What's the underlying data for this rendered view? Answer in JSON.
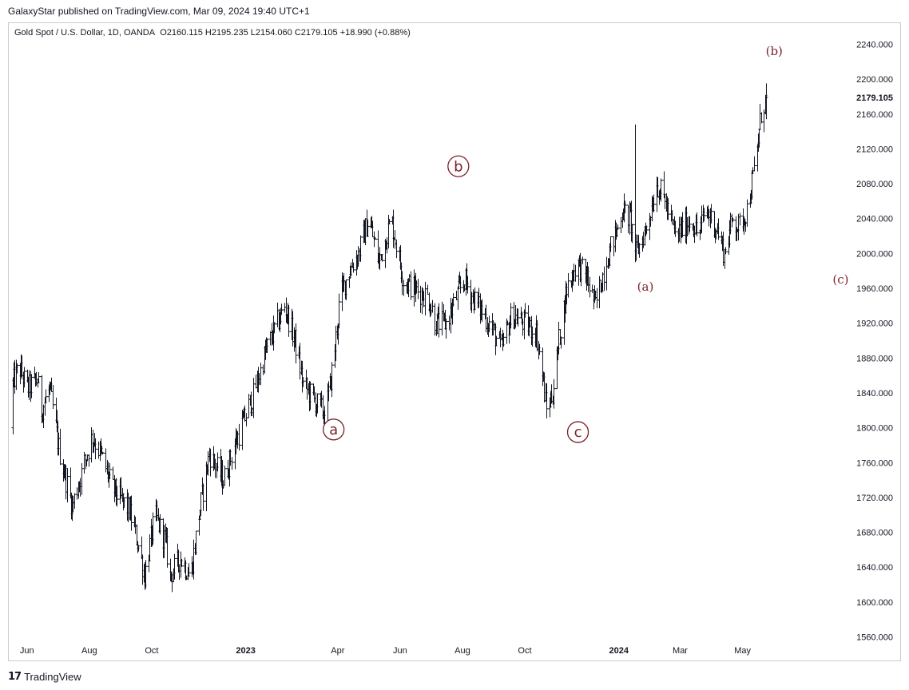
{
  "header": {
    "published": "GalaxyStar published on TradingView.com, Mar 09, 2024 19:40 UTC+1"
  },
  "symbol": {
    "title": "Gold Spot / U.S. Dollar, 1D, OANDA",
    "ohlc": "O2160.115  H2195.235  L2154.060  C2179.105  +18.990 (+0.88%)"
  },
  "footer": {
    "logo_icon": "tradingview-logo-icon",
    "brand": "TradingView"
  },
  "colors": {
    "bars": "#131722",
    "wave_labels": "#7b1e27",
    "axis_text": "#131722",
    "frame": "#c9ccd1"
  },
  "chart_data": {
    "type": "ohlc-bar",
    "y_tick_labels": [
      "2240.000",
      "2200.000",
      "2160.000",
      "2120.000",
      "2080.000",
      "2040.000",
      "2000.000",
      "1960.000",
      "1920.000",
      "1880.000",
      "1840.000",
      "1800.000",
      "1760.000",
      "1720.000",
      "1680.000",
      "1640.000",
      "1600.000",
      "1560.000"
    ],
    "ylim": [
      1560,
      2240
    ],
    "last_price_label": "2179.105",
    "last_price": 2179.105,
    "x_tick_labels": [
      {
        "label": "Jun",
        "bold": false,
        "day": 0
      },
      {
        "label": "Aug",
        "bold": false,
        "day": 61
      },
      {
        "label": "Oct",
        "bold": false,
        "day": 122
      },
      {
        "label": "2023",
        "bold": true,
        "day": 214
      },
      {
        "label": "Apr",
        "bold": false,
        "day": 304
      },
      {
        "label": "Jun",
        "bold": false,
        "day": 365
      },
      {
        "label": "Aug",
        "bold": false,
        "day": 426
      },
      {
        "label": "Oct",
        "bold": false,
        "day": 487
      },
      {
        "label": "2024",
        "bold": true,
        "day": 579
      },
      {
        "label": "Mar",
        "bold": false,
        "day": 639
      },
      {
        "label": "May",
        "bold": false,
        "day": 700
      }
    ],
    "xlim_days": [
      -17,
      798
    ],
    "price_path": [
      [
        -16,
        1800
      ],
      [
        -14,
        1850
      ],
      [
        -8,
        1870
      ],
      [
        0,
        1845
      ],
      [
        10,
        1855
      ],
      [
        14,
        1820
      ],
      [
        22,
        1845
      ],
      [
        32,
        1770
      ],
      [
        44,
        1710
      ],
      [
        56,
        1760
      ],
      [
        64,
        1790
      ],
      [
        72,
        1770
      ],
      [
        84,
        1730
      ],
      [
        100,
        1705
      ],
      [
        110,
        1660
      ],
      [
        115,
        1630
      ],
      [
        125,
        1700
      ],
      [
        135,
        1670
      ],
      [
        140,
        1630
      ],
      [
        150,
        1650
      ],
      [
        160,
        1630
      ],
      [
        168,
        1700
      ],
      [
        178,
        1770
      ],
      [
        192,
        1740
      ],
      [
        206,
        1790
      ],
      [
        222,
        1840
      ],
      [
        234,
        1890
      ],
      [
        252,
        1940
      ],
      [
        262,
        1900
      ],
      [
        270,
        1850
      ],
      [
        282,
        1830
      ],
      [
        292,
        1815
      ],
      [
        300,
        1880
      ],
      [
        306,
        1950
      ],
      [
        315,
        1980
      ],
      [
        324,
        2000
      ],
      [
        334,
        2040
      ],
      [
        344,
        1990
      ],
      [
        356,
        2040
      ],
      [
        368,
        1970
      ],
      [
        378,
        1960
      ],
      [
        392,
        1950
      ],
      [
        400,
        1920
      ],
      [
        410,
        1920
      ],
      [
        420,
        1950
      ],
      [
        428,
        1970
      ],
      [
        436,
        1950
      ],
      [
        452,
        1920
      ],
      [
        464,
        1890
      ],
      [
        474,
        1930
      ],
      [
        486,
        1920
      ],
      [
        498,
        1910
      ],
      [
        504,
        1860
      ],
      [
        508,
        1820
      ],
      [
        514,
        1840
      ],
      [
        520,
        1900
      ],
      [
        528,
        1960
      ],
      [
        538,
        1990
      ],
      [
        548,
        1970
      ],
      [
        556,
        1940
      ],
      [
        566,
        1990
      ],
      [
        578,
        2030
      ],
      [
        582,
        2050
      ],
      [
        590,
        2040
      ],
      [
        596,
        2000
      ],
      [
        606,
        2030
      ],
      [
        616,
        2080
      ],
      [
        624,
        2060
      ],
      [
        634,
        2020
      ],
      [
        650,
        2040
      ],
      [
        656,
        2020
      ],
      [
        664,
        2050
      ],
      [
        674,
        2030
      ],
      [
        682,
        2000
      ],
      [
        690,
        2040
      ],
      [
        696,
        2030
      ],
      [
        704,
        2050
      ],
      [
        712,
        2100
      ],
      [
        718,
        2160
      ],
      [
        723,
        2180
      ]
    ],
    "spikes": [
      {
        "day": 595,
        "high": 2148,
        "low": 1990
      },
      {
        "day": 608,
        "high": 2030,
        "low": 1975
      },
      {
        "day": 496,
        "high": 1925,
        "low": 1880
      },
      {
        "day": 425,
        "high": 2068,
        "low": 1985
      }
    ],
    "last_bar": {
      "open": 2160.115,
      "high": 2195.235,
      "low": 2154.06,
      "close": 2179.105
    },
    "wave_labels": [
      {
        "text": "a",
        "circled": true,
        "day": 300,
        "price": 1798
      },
      {
        "text": "b",
        "circled": true,
        "day": 422,
        "price": 2100
      },
      {
        "text": "c",
        "circled": true,
        "day": 539,
        "price": 1795
      },
      {
        "text": "(a)",
        "circled": false,
        "day": 605,
        "price": 1962
      },
      {
        "text": "(b)",
        "circled": false,
        "day": 731,
        "price": 2232
      },
      {
        "text": "(c)",
        "circled": false,
        "day": 796,
        "price": 1970
      }
    ]
  }
}
